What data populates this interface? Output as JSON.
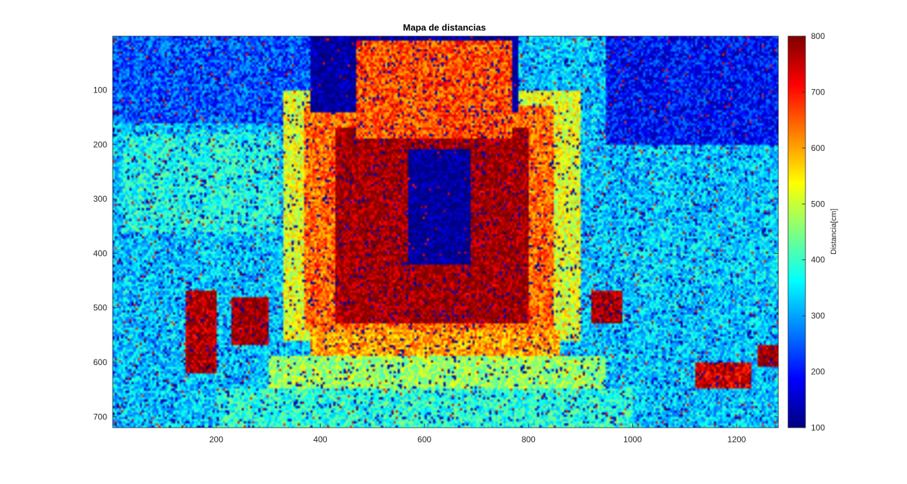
{
  "chart_data": {
    "type": "heatmap",
    "title": "Mapa de distancias",
    "colormap": "jet",
    "x_range": [
      1,
      1280
    ],
    "y_range": [
      1,
      720
    ],
    "y_reversed": true,
    "x_ticks": [
      "200",
      "400",
      "600",
      "800",
      "1000",
      "1200"
    ],
    "y_ticks": [
      "100",
      "200",
      "300",
      "400",
      "500",
      "600",
      "700"
    ],
    "colorbar": {
      "label": "Distancia[cm]",
      "range": [
        100,
        800
      ],
      "ticks": [
        "100",
        "200",
        "300",
        "400",
        "500",
        "600",
        "700",
        "800"
      ]
    },
    "regions": [
      {
        "desc": "background",
        "x": [
          1,
          1280
        ],
        "y": [
          1,
          720
        ],
        "value": 330
      },
      {
        "desc": "top-left",
        "x": [
          1,
          380
        ],
        "y": [
          1,
          160
        ],
        "value": 250
      },
      {
        "desc": "top-right",
        "x": [
          950,
          1280
        ],
        "y": [
          1,
          200
        ],
        "value": 200
      },
      {
        "desc": "left-middle",
        "x": [
          20,
          320
        ],
        "y": [
          180,
          360
        ],
        "value": 380
      },
      {
        "desc": "right-middle",
        "x": [
          930,
          1280
        ],
        "y": [
          360,
          460
        ],
        "value": 340
      },
      {
        "desc": "outer-glow",
        "x": [
          330,
          900
        ],
        "y": [
          100,
          560
        ],
        "value": 520
      },
      {
        "desc": "inner-ring",
        "x": [
          370,
          850
        ],
        "y": [
          130,
          540
        ],
        "value": 640
      },
      {
        "desc": "arch",
        "x": [
          430,
          800
        ],
        "y": [
          170,
          530
        ],
        "value": 790
      },
      {
        "desc": "arch-opening",
        "x": [
          570,
          690
        ],
        "y": [
          210,
          420
        ],
        "value": 100
      },
      {
        "desc": "top-center",
        "x": [
          380,
          780
        ],
        "y": [
          1,
          140
        ],
        "value": 110
      },
      {
        "desc": "top-center-speckle",
        "x": [
          470,
          770
        ],
        "y": [
          10,
          190
        ],
        "value": 660
      },
      {
        "desc": "floor-near",
        "x": [
          380,
          860
        ],
        "y": [
          540,
          600
        ],
        "value": 600
      },
      {
        "desc": "floor-mid",
        "x": [
          300,
          950
        ],
        "y": [
          590,
          660
        ],
        "value": 470
      },
      {
        "desc": "floor-far",
        "x": [
          200,
          1000
        ],
        "y": [
          650,
          720
        ],
        "value": 390
      },
      {
        "desc": "left-block",
        "x": [
          140,
          200
        ],
        "y": [
          470,
          620
        ],
        "value": 770
      },
      {
        "desc": "left-center-block",
        "x": [
          230,
          300
        ],
        "y": [
          480,
          570
        ],
        "value": 790
      },
      {
        "desc": "right-block",
        "x": [
          920,
          980
        ],
        "y": [
          470,
          530
        ],
        "value": 780
      },
      {
        "desc": "right-lower-block",
        "x": [
          1120,
          1230
        ],
        "y": [
          600,
          650
        ],
        "value": 740
      },
      {
        "desc": "right-edge-block",
        "x": [
          1240,
          1280
        ],
        "y": [
          570,
          610
        ],
        "value": 790
      }
    ]
  }
}
